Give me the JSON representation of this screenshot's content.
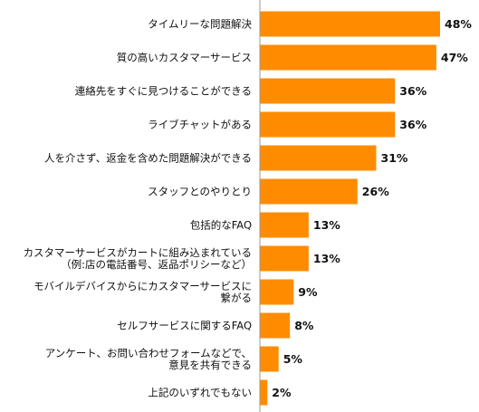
{
  "colors": {
    "bar": "#ff8c00",
    "axis": "#999999",
    "background": "#ffffff"
  },
  "chart_data": {
    "type": "bar",
    "orientation": "horizontal",
    "title": "",
    "xlabel": "",
    "ylabel": "",
    "xlim": [
      0,
      50
    ],
    "grid": false,
    "legend": "none",
    "categories": [
      [
        "タイムリーな問題解決"
      ],
      [
        "質の高いカスタマーサービス"
      ],
      [
        "連絡先をすぐに見つけることができる"
      ],
      [
        "ライブチャットがある"
      ],
      [
        "人を介さず、返金を含めた問題解決ができる"
      ],
      [
        "スタッフとのやりとり"
      ],
      [
        "包括的なFAQ"
      ],
      [
        "カスタマーサービスがカートに組み込まれている",
        "（例:店の電話番号、返品ポリシーなど）"
      ],
      [
        "モバイルデバイスからにカスタマーサービスに",
        "繋がる"
      ],
      [
        "セルフサービスに関するFAQ"
      ],
      [
        "アンケート、お問い合わせフォームなどで、",
        "意見を共有できる"
      ],
      [
        "上記のいずれでもない"
      ]
    ],
    "values": [
      48,
      47,
      36,
      36,
      31,
      26,
      13,
      13,
      9,
      8,
      5,
      2
    ],
    "value_labels": [
      "48%",
      "47%",
      "36%",
      "36%",
      "31%",
      "26%",
      "13%",
      "13%",
      "9%",
      "8%",
      "5%",
      "2%"
    ]
  }
}
